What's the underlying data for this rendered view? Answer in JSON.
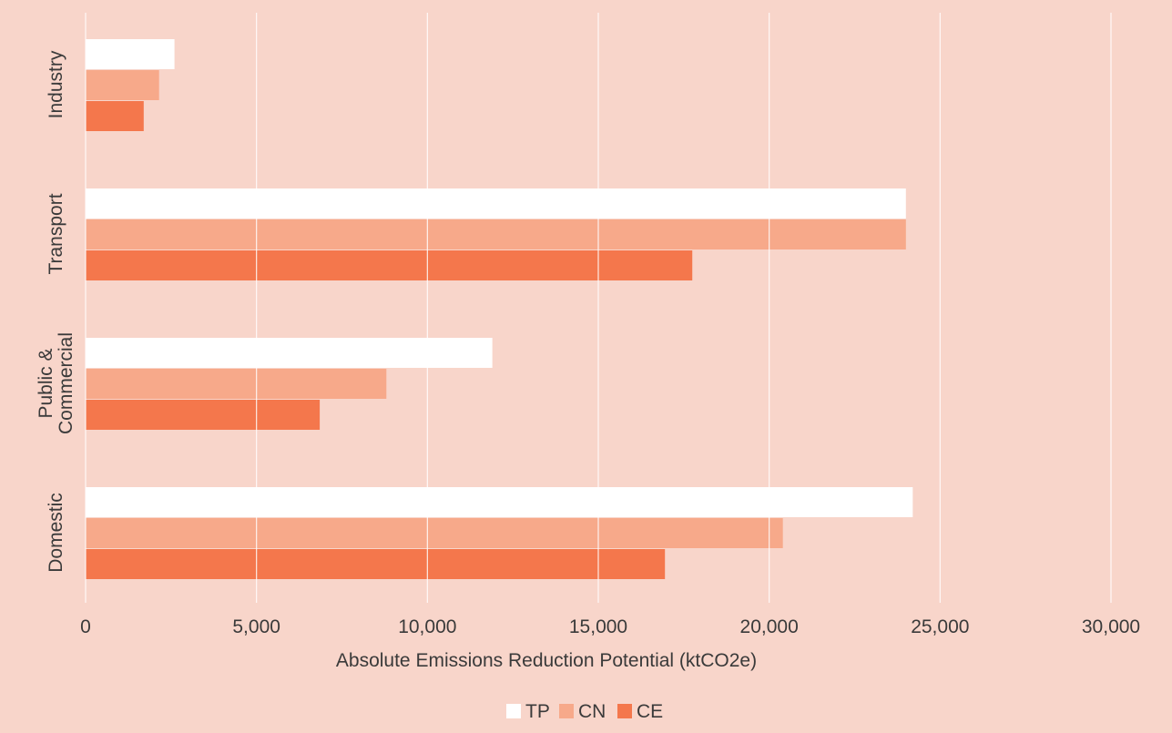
{
  "colors": {
    "background": "#F8D5CA",
    "grid": "#FFFFFF",
    "text": "#3a3a3a",
    "TP": "#FFFFFF",
    "CN": "#F7A98A",
    "CE": "#F4774C"
  },
  "chart_data": {
    "type": "bar",
    "orientation": "horizontal",
    "title": "",
    "xlabel": "Absolute Emissions Reduction Potential (ktCO2e)",
    "ylabel": "",
    "xlim": [
      0,
      30000
    ],
    "x_ticks": [
      0,
      5000,
      10000,
      15000,
      20000,
      25000,
      30000
    ],
    "x_tick_labels": [
      "0",
      "5,000",
      "10,000",
      "15,000",
      "20,000",
      "25,000",
      "30,000"
    ],
    "grid": "vertical",
    "legend_position": "bottom-center",
    "categories": [
      {
        "lines": [
          "Industry"
        ]
      },
      {
        "lines": [
          "Transport"
        ]
      },
      {
        "lines": [
          "Public &",
          "Commercial"
        ]
      },
      {
        "lines": [
          "Domestic"
        ]
      }
    ],
    "series": [
      {
        "name": "TP",
        "color": "#FFFFFF",
        "values": [
          2600,
          24000,
          11900,
          24200
        ]
      },
      {
        "name": "CN",
        "color": "#F7A98A",
        "values": [
          2150,
          24000,
          8800,
          20400
        ]
      },
      {
        "name": "CE",
        "color": "#F4774C",
        "values": [
          1700,
          17750,
          6850,
          16950
        ]
      }
    ]
  }
}
